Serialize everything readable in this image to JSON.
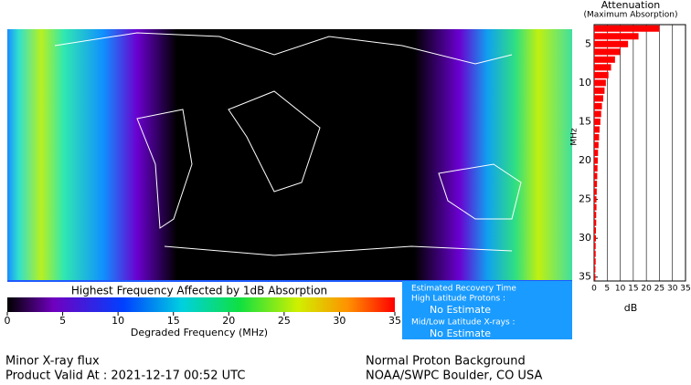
{
  "chart_data": {
    "type": "bar",
    "orientation": "horizontal",
    "title": "Attenuation",
    "subtitle": "(Maximum Absorption)",
    "x_label": "MHz",
    "y_label": "dB",
    "x": [
      3,
      4,
      5,
      6,
      7,
      8,
      9,
      10,
      11,
      12,
      13,
      14,
      15,
      16,
      17,
      18,
      19,
      20,
      21,
      22,
      23,
      24,
      25,
      26,
      27,
      28,
      29,
      30,
      31,
      32,
      33,
      34,
      35
    ],
    "values": [
      25,
      17,
      13,
      10,
      8,
      6.5,
      5.5,
      4.5,
      4,
      3.5,
      3,
      2.7,
      2.4,
      2.1,
      1.9,
      1.7,
      1.5,
      1.4,
      1.3,
      1.2,
      1.1,
      1.0,
      0.9,
      0.9,
      0.8,
      0.8,
      0.7,
      0.7,
      0.6,
      0.6,
      0.6,
      0.5,
      0.5
    ],
    "color": "#ff0000",
    "xlim": [
      2.5,
      35.5
    ],
    "xticks": [
      5,
      10,
      15,
      20,
      25,
      30,
      35
    ],
    "ylim": [
      0,
      35
    ],
    "yticks": [
      0,
      5,
      10,
      15,
      20,
      25,
      30,
      35
    ],
    "grid": true
  },
  "colorbar": {
    "title": "Highest Frequency Affected by 1dB Absorption",
    "label": "Degraded Frequency (MHz)",
    "range": [
      0,
      35
    ],
    "ticks": [
      0,
      5,
      10,
      15,
      20,
      25,
      30,
      35
    ]
  },
  "recovery": {
    "title": "Estimated Recovery Time",
    "high_lat_label": "High Latitude Protons :",
    "high_lat_value": "No Estimate",
    "low_lat_label": "Mid/Low Latitude X-rays :",
    "low_lat_value": "No Estimate"
  },
  "status": {
    "xray": "Minor X-ray flux",
    "valid": "Product Valid At : 2021-12-17 00:52 UTC",
    "proton": "Normal Proton Background",
    "source": "NOAA/SWPC Boulder, CO USA"
  }
}
